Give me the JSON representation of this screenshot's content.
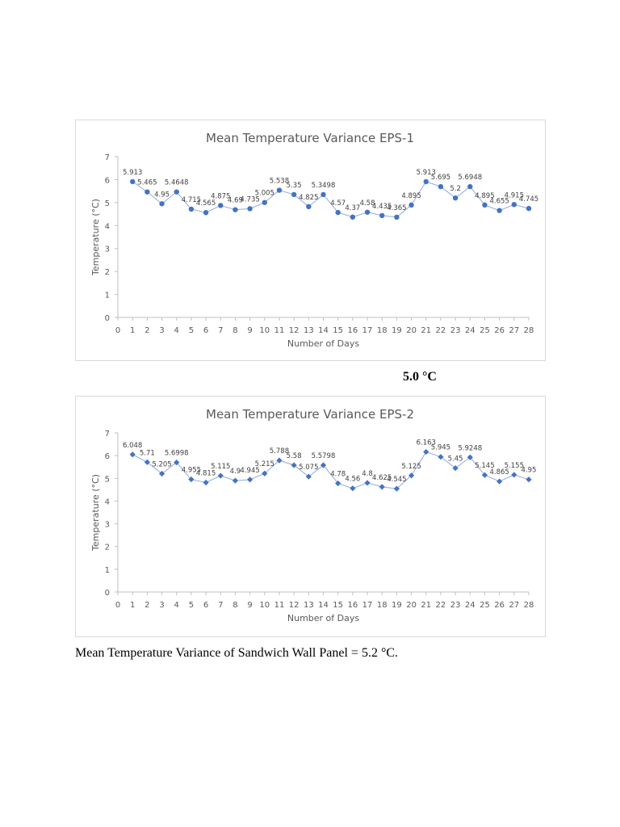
{
  "chart_data": [
    {
      "type": "line",
      "title": "Mean Temperature Variance EPS-1",
      "xlabel": "Number of Days",
      "ylabel": "Temperature (°C)",
      "xlim": [
        0,
        28
      ],
      "ylim": [
        0,
        7
      ],
      "x_ticks": [
        0,
        1,
        2,
        3,
        4,
        5,
        6,
        7,
        8,
        9,
        10,
        11,
        12,
        13,
        14,
        15,
        16,
        17,
        18,
        19,
        20,
        21,
        22,
        23,
        24,
        25,
        26,
        27,
        28
      ],
      "y_ticks": [
        0,
        1,
        2,
        3,
        4,
        5,
        6,
        7
      ],
      "grid": false,
      "marker": "circle",
      "color": "#4472C4",
      "x": [
        1,
        2,
        3,
        4,
        5,
        6,
        7,
        8,
        9,
        10,
        11,
        12,
        13,
        14,
        15,
        16,
        17,
        18,
        19,
        20,
        21,
        22,
        23,
        24,
        25,
        26,
        27,
        28
      ],
      "values": [
        5.913,
        5.465,
        4.95,
        5.4648,
        4.715,
        4.565,
        4.875,
        4.69,
        4.735,
        5.005,
        5.538,
        5.35,
        4.825,
        5.3498,
        4.57,
        4.37,
        4.58,
        4.435,
        4.365,
        4.895,
        5.913,
        5.695,
        5.2,
        5.6948,
        4.895,
        4.655,
        4.915,
        4.745
      ]
    },
    {
      "type": "line",
      "title": "Mean Temperature Variance EPS-2",
      "xlabel": "Number of Days",
      "ylabel": "Temperature (°C)",
      "xlim": [
        0,
        28
      ],
      "ylim": [
        0,
        7
      ],
      "x_ticks": [
        0,
        1,
        2,
        3,
        4,
        5,
        6,
        7,
        8,
        9,
        10,
        11,
        12,
        13,
        14,
        15,
        16,
        17,
        18,
        19,
        20,
        21,
        22,
        23,
        24,
        25,
        26,
        27,
        28
      ],
      "y_ticks": [
        0,
        1,
        2,
        3,
        4,
        5,
        6,
        7
      ],
      "grid": false,
      "marker": "diamond",
      "color": "#4472C4",
      "x": [
        1,
        2,
        3,
        4,
        5,
        6,
        7,
        8,
        9,
        10,
        11,
        12,
        13,
        14,
        15,
        16,
        17,
        18,
        19,
        20,
        21,
        22,
        23,
        24,
        25,
        26,
        27,
        28
      ],
      "values": [
        6.048,
        5.71,
        5.205,
        5.6998,
        4.955,
        4.815,
        5.115,
        4.9,
        4.945,
        5.215,
        5.788,
        5.58,
        5.075,
        5.5798,
        4.78,
        4.56,
        4.8,
        4.625,
        4.545,
        5.125,
        6.163,
        5.945,
        5.45,
        5.9248,
        5.145,
        4.865,
        5.155,
        4.95
      ]
    }
  ],
  "notes": {
    "eps1_result": "5.0 °C",
    "summary": "Mean Temperature Variance of Sandwich Wall Panel = 5.2 °C."
  }
}
